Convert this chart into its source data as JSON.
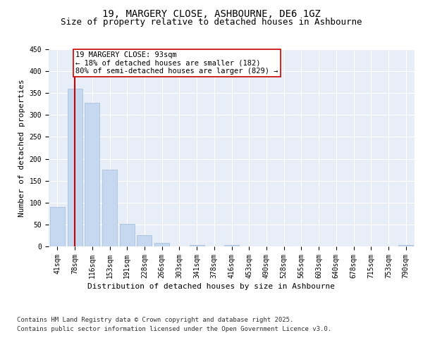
{
  "title_line1": "19, MARGERY CLOSE, ASHBOURNE, DE6 1GZ",
  "title_line2": "Size of property relative to detached houses in Ashbourne",
  "xlabel": "Distribution of detached houses by size in Ashbourne",
  "ylabel": "Number of detached properties",
  "categories": [
    "41sqm",
    "78sqm",
    "116sqm",
    "153sqm",
    "191sqm",
    "228sqm",
    "266sqm",
    "303sqm",
    "341sqm",
    "378sqm",
    "416sqm",
    "453sqm",
    "490sqm",
    "528sqm",
    "565sqm",
    "603sqm",
    "640sqm",
    "678sqm",
    "715sqm",
    "753sqm",
    "790sqm"
  ],
  "values": [
    90,
    360,
    328,
    175,
    52,
    25,
    8,
    0,
    3,
    0,
    3,
    0,
    0,
    0,
    0,
    0,
    0,
    0,
    0,
    0,
    3
  ],
  "bar_color": "#c5d8f0",
  "bar_edge_color": "#a0bcd8",
  "vline_x": 1,
  "vline_color": "#cc0000",
  "annotation_text": "19 MARGERY CLOSE: 93sqm\n← 18% of detached houses are smaller (182)\n80% of semi-detached houses are larger (829) →",
  "annotation_box_color": "#ffffff",
  "annotation_box_edge_color": "#cc0000",
  "ylim": [
    0,
    450
  ],
  "yticks": [
    0,
    50,
    100,
    150,
    200,
    250,
    300,
    350,
    400,
    450
  ],
  "bg_color": "#e8eef7",
  "grid_color": "#ffffff",
  "footer_line1": "Contains HM Land Registry data © Crown copyright and database right 2025.",
  "footer_line2": "Contains public sector information licensed under the Open Government Licence v3.0.",
  "title_fontsize": 10,
  "subtitle_fontsize": 9,
  "axis_label_fontsize": 8,
  "tick_fontsize": 7,
  "annotation_fontsize": 7.5,
  "footer_fontsize": 6.5
}
